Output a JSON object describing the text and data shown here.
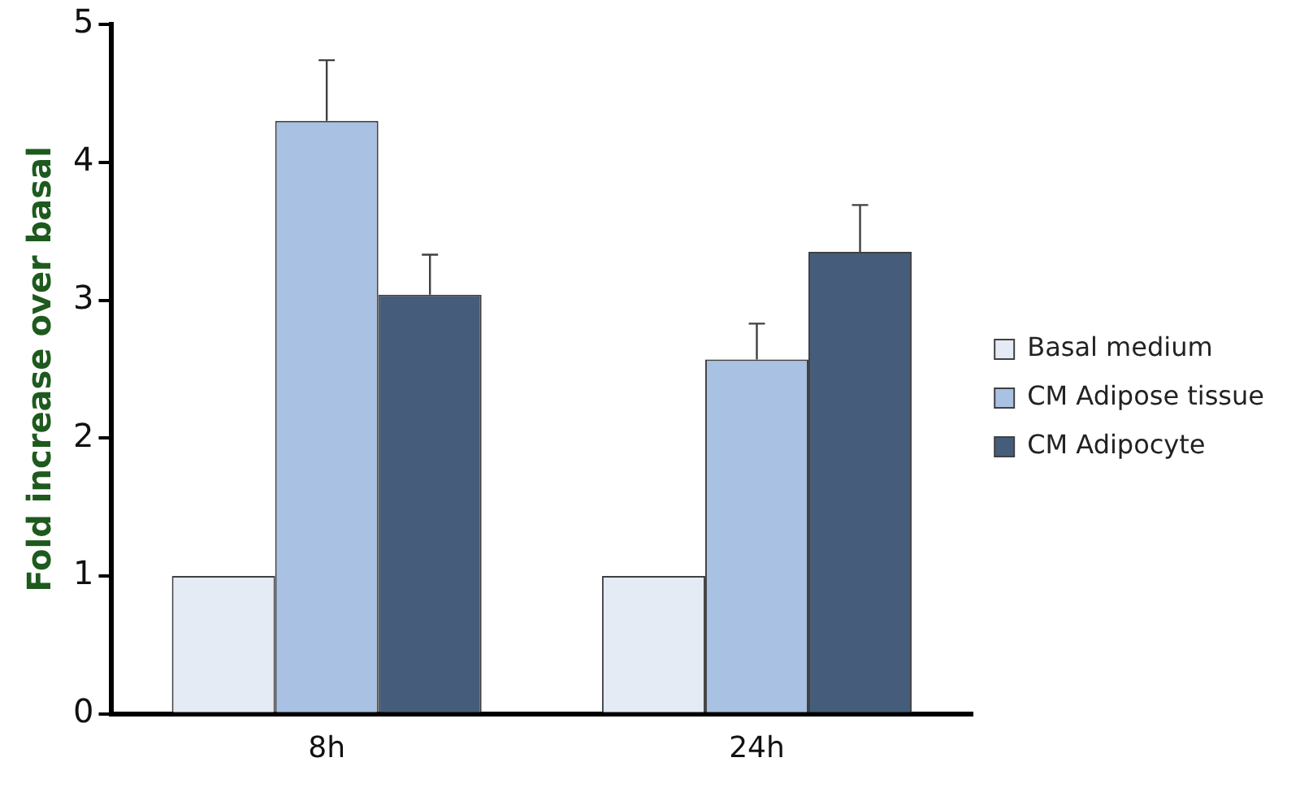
{
  "chart_data": {
    "type": "bar",
    "ylabel": "Fold increase over basal",
    "categories": [
      "8h",
      "24h"
    ],
    "series": [
      {
        "name": "Basal medium",
        "color": "#e4ebf5",
        "values": [
          1.0,
          1.0
        ]
      },
      {
        "name": "CM Adipose tissue",
        "color": "#a9c1e2",
        "values": [
          4.3,
          2.57
        ],
        "errors": [
          0.44,
          0.26
        ]
      },
      {
        "name": "CM Adipocyte",
        "color": "#455d7a",
        "values": [
          3.04,
          3.35
        ],
        "errors": [
          0.29,
          0.34
        ]
      }
    ],
    "ylim": [
      0,
      5
    ],
    "yticks": [
      0,
      1,
      2,
      3,
      4,
      5
    ],
    "grid": false,
    "legend": "right"
  }
}
